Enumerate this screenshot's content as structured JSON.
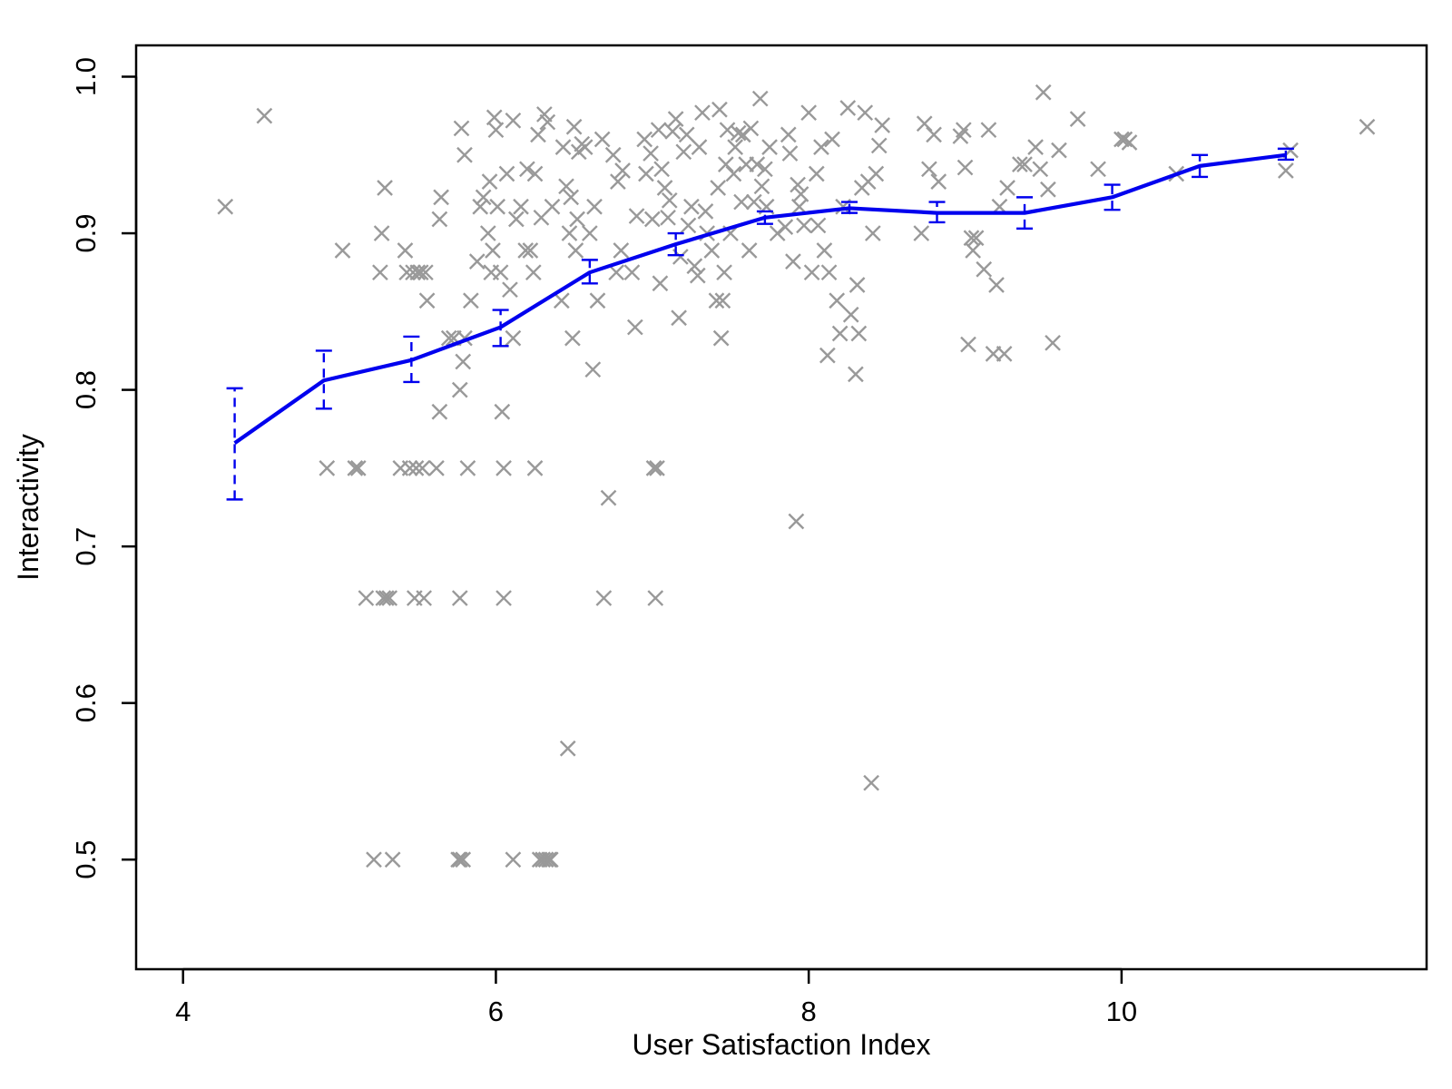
{
  "chart_data": {
    "type": "scatter",
    "xlabel": "User Satisfaction Index",
    "ylabel": "Interactivity",
    "xlim": [
      3.7,
      11.95
    ],
    "ylim": [
      0.43,
      1.02
    ],
    "x_ticks": [
      4,
      6,
      8,
      10
    ],
    "x_tick_labels": [
      "4",
      "6",
      "8",
      "10"
    ],
    "y_ticks": [
      0.5,
      0.6,
      0.7,
      0.8,
      0.9,
      1.0
    ],
    "y_tick_labels": [
      "0.5",
      "0.6",
      "0.7",
      "0.8",
      "0.9",
      "1.0"
    ],
    "grid": false,
    "legend": "none",
    "colors": {
      "points": "#999999",
      "line": "#0000ee",
      "axis": "#000000"
    },
    "marker": "x",
    "points": [
      [
        4.27,
        0.917
      ],
      [
        4.52,
        0.975
      ],
      [
        4.92,
        0.75
      ],
      [
        5.02,
        0.889
      ],
      [
        5.1,
        0.75
      ],
      [
        5.12,
        0.75
      ],
      [
        5.17,
        0.667
      ],
      [
        5.22,
        0.5
      ],
      [
        5.26,
        0.875
      ],
      [
        5.27,
        0.9
      ],
      [
        5.28,
        0.667
      ],
      [
        5.29,
        0.929
      ],
      [
        5.3,
        0.667
      ],
      [
        5.32,
        0.667
      ],
      [
        5.34,
        0.5
      ],
      [
        5.39,
        0.75
      ],
      [
        5.42,
        0.889
      ],
      [
        5.43,
        0.875
      ],
      [
        5.45,
        0.75
      ],
      [
        5.47,
        0.875
      ],
      [
        5.48,
        0.667
      ],
      [
        5.49,
        0.75
      ],
      [
        5.5,
        0.875
      ],
      [
        5.52,
        0.875
      ],
      [
        5.53,
        0.75
      ],
      [
        5.54,
        0.667
      ],
      [
        5.55,
        0.875
      ],
      [
        5.56,
        0.857
      ],
      [
        5.62,
        0.75
      ],
      [
        5.64,
        0.786
      ],
      [
        5.64,
        0.909
      ],
      [
        5.65,
        0.923
      ],
      [
        5.7,
        0.833
      ],
      [
        5.73,
        0.833
      ],
      [
        5.76,
        0.5
      ],
      [
        5.77,
        0.5
      ],
      [
        5.77,
        0.667
      ],
      [
        5.77,
        0.8
      ],
      [
        5.78,
        0.967
      ],
      [
        5.79,
        0.5
      ],
      [
        5.79,
        0.818
      ],
      [
        5.8,
        0.95
      ],
      [
        5.8,
        0.833
      ],
      [
        5.82,
        0.75
      ],
      [
        5.84,
        0.857
      ],
      [
        5.88,
        0.882
      ],
      [
        5.9,
        0.917
      ],
      [
        5.92,
        0.923
      ],
      [
        5.95,
        0.9
      ],
      [
        5.96,
        0.933
      ],
      [
        5.97,
        0.875
      ],
      [
        5.98,
        0.889
      ],
      [
        5.99,
        0.974
      ],
      [
        6.0,
        0.966
      ],
      [
        6.01,
        0.917
      ],
      [
        6.03,
        0.875
      ],
      [
        6.04,
        0.786
      ],
      [
        6.05,
        0.75
      ],
      [
        6.05,
        0.667
      ],
      [
        6.07,
        0.938
      ],
      [
        6.09,
        0.864
      ],
      [
        6.11,
        0.5
      ],
      [
        6.11,
        0.972
      ],
      [
        6.11,
        0.833
      ],
      [
        6.13,
        0.909
      ],
      [
        6.16,
        0.917
      ],
      [
        6.19,
        0.889
      ],
      [
        6.2,
        0.941
      ],
      [
        6.22,
        0.889
      ],
      [
        6.24,
        0.875
      ],
      [
        6.25,
        0.75
      ],
      [
        6.25,
        0.938
      ],
      [
        6.27,
        0.963
      ],
      [
        6.28,
        0.5
      ],
      [
        6.29,
        0.91
      ],
      [
        6.3,
        0.5
      ],
      [
        6.31,
        0.976
      ],
      [
        6.32,
        0.5
      ],
      [
        6.33,
        0.971
      ],
      [
        6.34,
        0.5
      ],
      [
        6.35,
        0.5
      ],
      [
        6.36,
        0.917
      ],
      [
        6.42,
        0.857
      ],
      [
        6.43,
        0.955
      ],
      [
        6.45,
        0.93
      ],
      [
        6.46,
        0.571
      ],
      [
        6.47,
        0.9
      ],
      [
        6.48,
        0.923
      ],
      [
        6.49,
        0.833
      ],
      [
        6.5,
        0.968
      ],
      [
        6.51,
        0.889
      ],
      [
        6.52,
        0.909
      ],
      [
        6.53,
        0.952
      ],
      [
        6.55,
        0.957
      ],
      [
        6.57,
        0.955
      ],
      [
        6.6,
        0.9
      ],
      [
        6.62,
        0.813
      ],
      [
        6.63,
        0.917
      ],
      [
        6.65,
        0.857
      ],
      [
        6.68,
        0.96
      ],
      [
        6.69,
        0.667
      ],
      [
        6.72,
        0.731
      ],
      [
        6.75,
        0.95
      ],
      [
        6.77,
        0.875
      ],
      [
        6.78,
        0.933
      ],
      [
        6.8,
        0.889
      ],
      [
        6.81,
        0.94
      ],
      [
        6.87,
        0.875
      ],
      [
        6.89,
        0.84
      ],
      [
        6.9,
        0.911
      ],
      [
        6.95,
        0.96
      ],
      [
        6.96,
        0.938
      ],
      [
        6.99,
        0.951
      ],
      [
        7.0,
        0.909
      ],
      [
        7.01,
        0.75
      ],
      [
        7.02,
        0.667
      ],
      [
        7.03,
        0.75
      ],
      [
        7.04,
        0.966
      ],
      [
        7.05,
        0.868
      ],
      [
        7.06,
        0.941
      ],
      [
        7.08,
        0.929
      ],
      [
        7.1,
        0.91
      ],
      [
        7.11,
        0.921
      ],
      [
        7.13,
        0.965
      ],
      [
        7.15,
        0.973
      ],
      [
        7.17,
        0.846
      ],
      [
        7.18,
        0.885
      ],
      [
        7.2,
        0.952
      ],
      [
        7.22,
        0.963
      ],
      [
        7.23,
        0.905
      ],
      [
        7.25,
        0.917
      ],
      [
        7.27,
        0.879
      ],
      [
        7.29,
        0.873
      ],
      [
        7.3,
        0.955
      ],
      [
        7.32,
        0.977
      ],
      [
        7.34,
        0.914
      ],
      [
        7.35,
        0.9
      ],
      [
        7.38,
        0.889
      ],
      [
        7.41,
        0.857
      ],
      [
        7.42,
        0.929
      ],
      [
        7.43,
        0.979
      ],
      [
        7.44,
        0.833
      ],
      [
        7.45,
        0.857
      ],
      [
        7.46,
        0.875
      ],
      [
        7.47,
        0.944
      ],
      [
        7.48,
        0.966
      ],
      [
        7.5,
        0.9
      ],
      [
        7.52,
        0.938
      ],
      [
        7.53,
        0.955
      ],
      [
        7.55,
        0.964
      ],
      [
        7.57,
        0.92
      ],
      [
        7.58,
        0.963
      ],
      [
        7.6,
        0.944
      ],
      [
        7.62,
        0.889
      ],
      [
        7.63,
        0.967
      ],
      [
        7.65,
        0.92
      ],
      [
        7.67,
        0.944
      ],
      [
        7.69,
        0.986
      ],
      [
        7.7,
        0.93
      ],
      [
        7.72,
        0.941
      ],
      [
        7.73,
        0.917
      ],
      [
        7.75,
        0.955
      ],
      [
        7.8,
        0.9
      ],
      [
        7.85,
        0.904
      ],
      [
        7.87,
        0.963
      ],
      [
        7.88,
        0.951
      ],
      [
        7.9,
        0.882
      ],
      [
        7.92,
        0.716
      ],
      [
        7.93,
        0.931
      ],
      [
        7.94,
        0.917
      ],
      [
        7.95,
        0.925
      ],
      [
        7.97,
        0.905
      ],
      [
        8.0,
        0.977
      ],
      [
        8.02,
        0.875
      ],
      [
        8.05,
        0.938
      ],
      [
        8.06,
        0.905
      ],
      [
        8.08,
        0.955
      ],
      [
        8.1,
        0.889
      ],
      [
        8.12,
        0.822
      ],
      [
        8.13,
        0.875
      ],
      [
        8.15,
        0.96
      ],
      [
        8.18,
        0.857
      ],
      [
        8.2,
        0.836
      ],
      [
        8.22,
        0.917
      ],
      [
        8.25,
        0.98
      ],
      [
        8.27,
        0.848
      ],
      [
        8.3,
        0.81
      ],
      [
        8.31,
        0.867
      ],
      [
        8.32,
        0.836
      ],
      [
        8.34,
        0.929
      ],
      [
        8.36,
        0.977
      ],
      [
        8.38,
        0.933
      ],
      [
        8.4,
        0.549
      ],
      [
        8.41,
        0.9
      ],
      [
        8.43,
        0.938
      ],
      [
        8.45,
        0.956
      ],
      [
        8.47,
        0.969
      ],
      [
        8.72,
        0.9
      ],
      [
        8.74,
        0.97
      ],
      [
        8.77,
        0.941
      ],
      [
        8.8,
        0.963
      ],
      [
        8.83,
        0.933
      ],
      [
        8.97,
        0.962
      ],
      [
        8.99,
        0.966
      ],
      [
        9.0,
        0.942
      ],
      [
        9.02,
        0.829
      ],
      [
        9.04,
        0.897
      ],
      [
        9.05,
        0.889
      ],
      [
        9.07,
        0.897
      ],
      [
        9.12,
        0.877
      ],
      [
        9.15,
        0.966
      ],
      [
        9.18,
        0.823
      ],
      [
        9.2,
        0.867
      ],
      [
        9.22,
        0.917
      ],
      [
        9.25,
        0.823
      ],
      [
        9.27,
        0.929
      ],
      [
        9.35,
        0.944
      ],
      [
        9.38,
        0.944
      ],
      [
        9.45,
        0.955
      ],
      [
        9.48,
        0.941
      ],
      [
        9.5,
        0.99
      ],
      [
        9.53,
        0.928
      ],
      [
        9.56,
        0.83
      ],
      [
        9.6,
        0.953
      ],
      [
        9.72,
        0.973
      ],
      [
        9.85,
        0.941
      ],
      [
        10.0,
        0.96
      ],
      [
        10.02,
        0.96
      ],
      [
        10.05,
        0.958
      ],
      [
        10.35,
        0.938
      ],
      [
        11.05,
        0.94
      ],
      [
        11.08,
        0.953
      ],
      [
        11.57,
        0.968
      ]
    ],
    "series": [
      {
        "x": [
          4.33,
          4.9,
          5.46,
          6.03,
          6.6,
          7.15,
          7.72,
          8.26,
          8.82,
          9.38,
          9.94,
          10.5,
          11.05
        ],
        "y": [
          0.766,
          0.806,
          0.819,
          0.84,
          0.875,
          0.893,
          0.91,
          0.916,
          0.913,
          0.913,
          0.923,
          0.943,
          0.95
        ],
        "err_low": [
          0.73,
          0.788,
          0.805,
          0.828,
          0.868,
          0.886,
          0.906,
          0.913,
          0.907,
          0.903,
          0.915,
          0.936,
          0.947
        ],
        "err_high": [
          0.801,
          0.825,
          0.834,
          0.851,
          0.883,
          0.9,
          0.914,
          0.92,
          0.92,
          0.923,
          0.931,
          0.95,
          0.954
        ]
      }
    ]
  }
}
